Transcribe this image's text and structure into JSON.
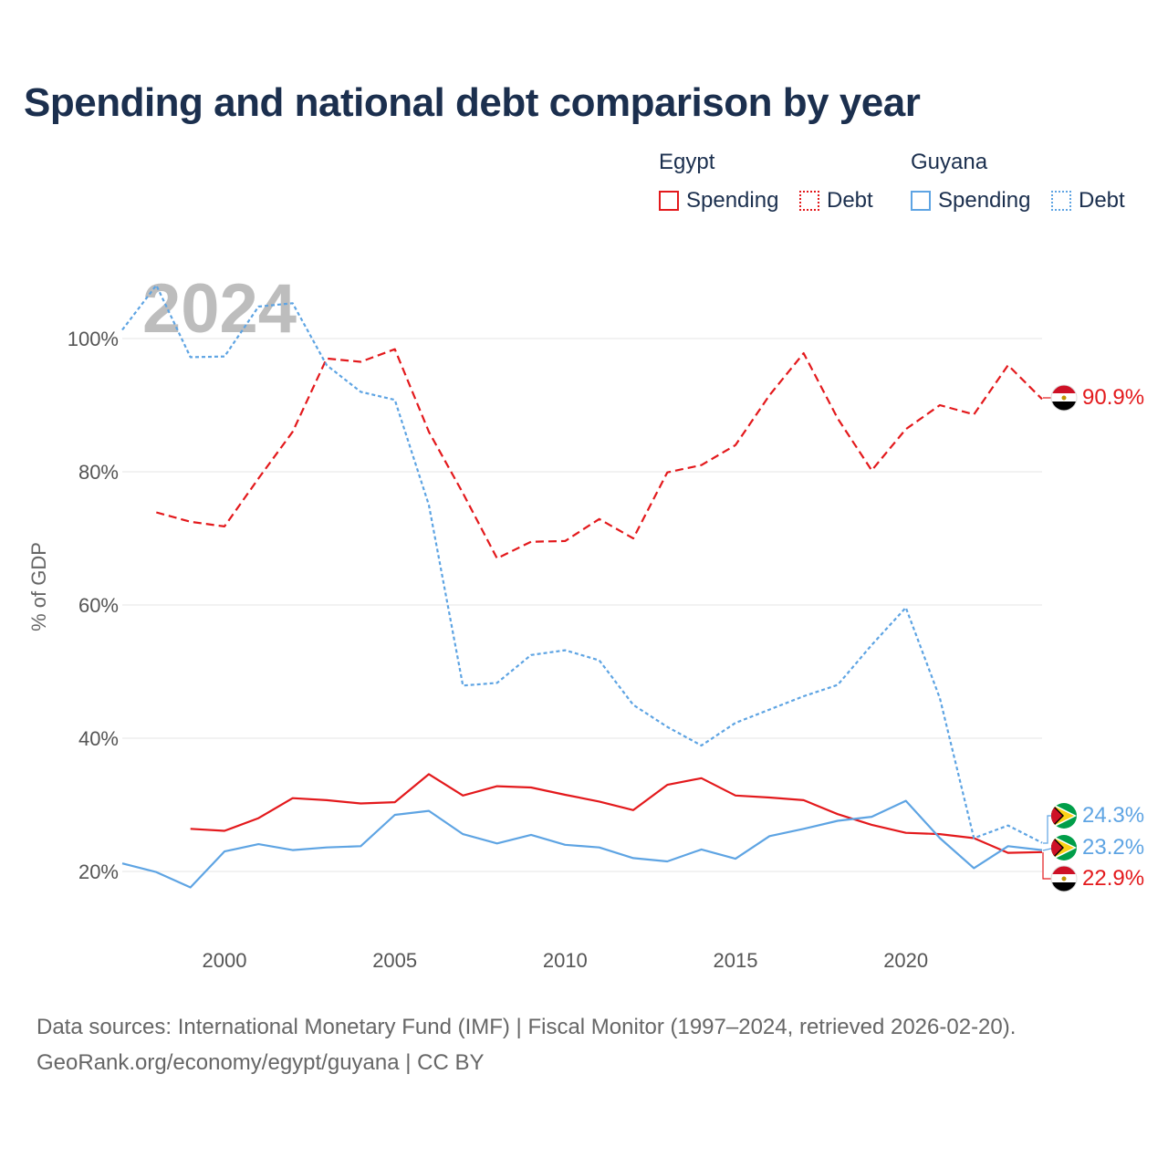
{
  "title": "Spending and national debt comparison by year",
  "legend": {
    "groups": [
      {
        "name": "Egypt",
        "color": "#e3191c",
        "items": [
          "Spending",
          "Debt"
        ]
      },
      {
        "name": "Guyana",
        "color": "#5ea4e3",
        "items": [
          "Spending",
          "Debt"
        ]
      }
    ]
  },
  "sources": {
    "line1": "Data sources: International Monetary Fund (IMF) | Fiscal Monitor (1997–2024, retrieved 2026-02-20).",
    "line2": "GeoRank.org/economy/egypt/guyana | CC BY"
  },
  "chart_data": {
    "type": "line",
    "title": "Spending and national debt comparison by year",
    "year_watermark": "2024",
    "ylabel": "% of GDP",
    "xlabel": "",
    "xlim": [
      1997,
      2024
    ],
    "ylim": [
      10,
      110
    ],
    "x_ticks": [
      2000,
      2005,
      2010,
      2015,
      2020
    ],
    "y_ticks": [
      20,
      40,
      60,
      80,
      100
    ],
    "y_tick_suffix": "%",
    "grid": true,
    "series": [
      {
        "name": "Egypt Spending",
        "country": "Egypt",
        "measure": "Spending",
        "color": "#e3191c",
        "dash": "solid",
        "end_label": "22.9%",
        "points": [
          [
            1999,
            26.4
          ],
          [
            2000,
            26.1
          ],
          [
            2001,
            28.0
          ],
          [
            2002,
            31.0
          ],
          [
            2003,
            30.7
          ],
          [
            2004,
            30.2
          ],
          [
            2005,
            30.4
          ],
          [
            2006,
            34.6
          ],
          [
            2007,
            31.4
          ],
          [
            2008,
            32.8
          ],
          [
            2009,
            32.6
          ],
          [
            2010,
            31.5
          ],
          [
            2011,
            30.5
          ],
          [
            2012,
            29.2
          ],
          [
            2013,
            33.0
          ],
          [
            2014,
            34.0
          ],
          [
            2015,
            31.4
          ],
          [
            2016,
            31.1
          ],
          [
            2017,
            30.7
          ],
          [
            2018,
            28.6
          ],
          [
            2019,
            27.0
          ],
          [
            2020,
            25.8
          ],
          [
            2021,
            25.6
          ],
          [
            2022,
            25.0
          ],
          [
            2023,
            22.8
          ],
          [
            2024,
            22.9
          ]
        ]
      },
      {
        "name": "Egypt Debt",
        "country": "Egypt",
        "measure": "Debt",
        "color": "#e3191c",
        "dash": "dashed",
        "end_label": "90.9%",
        "points": [
          [
            1998,
            73.9
          ],
          [
            1999,
            72.5
          ],
          [
            2000,
            71.8
          ],
          [
            2001,
            79.0
          ],
          [
            2002,
            86.0
          ],
          [
            2003,
            97.0
          ],
          [
            2004,
            96.5
          ],
          [
            2005,
            98.4
          ],
          [
            2006,
            86.0
          ],
          [
            2007,
            76.8
          ],
          [
            2008,
            67.0
          ],
          [
            2009,
            69.5
          ],
          [
            2010,
            69.6
          ],
          [
            2011,
            72.9
          ],
          [
            2012,
            70.0
          ],
          [
            2013,
            79.9
          ],
          [
            2014,
            81.0
          ],
          [
            2015,
            84.0
          ],
          [
            2016,
            91.5
          ],
          [
            2017,
            97.8
          ],
          [
            2018,
            88.0
          ],
          [
            2019,
            80.2
          ],
          [
            2020,
            86.4
          ],
          [
            2021,
            90.0
          ],
          [
            2022,
            88.6
          ],
          [
            2023,
            96.0
          ],
          [
            2024,
            90.9
          ]
        ]
      },
      {
        "name": "Guyana Spending",
        "country": "Guyana",
        "measure": "Spending",
        "color": "#5ea4e3",
        "dash": "solid",
        "end_label": "23.2%",
        "points": [
          [
            1997,
            21.2
          ],
          [
            1998,
            19.9
          ],
          [
            1999,
            17.6
          ],
          [
            2000,
            23.0
          ],
          [
            2001,
            24.1
          ],
          [
            2002,
            23.2
          ],
          [
            2003,
            23.6
          ],
          [
            2004,
            23.8
          ],
          [
            2005,
            28.5
          ],
          [
            2006,
            29.1
          ],
          [
            2007,
            25.6
          ],
          [
            2008,
            24.2
          ],
          [
            2009,
            25.5
          ],
          [
            2010,
            24.0
          ],
          [
            2011,
            23.6
          ],
          [
            2012,
            22.0
          ],
          [
            2013,
            21.5
          ],
          [
            2014,
            23.3
          ],
          [
            2015,
            21.9
          ],
          [
            2016,
            25.3
          ],
          [
            2017,
            26.4
          ],
          [
            2018,
            27.6
          ],
          [
            2019,
            28.2
          ],
          [
            2020,
            30.6
          ],
          [
            2021,
            25.0
          ],
          [
            2022,
            20.5
          ],
          [
            2023,
            23.8
          ],
          [
            2024,
            23.2
          ]
        ]
      },
      {
        "name": "Guyana Debt",
        "country": "Guyana",
        "measure": "Debt",
        "color": "#5ea4e3",
        "dash": "dotted",
        "end_label": "24.3%",
        "points": [
          [
            1997,
            101.3
          ],
          [
            1998,
            108.0
          ],
          [
            1999,
            97.2
          ],
          [
            2000,
            97.3
          ],
          [
            2001,
            104.8
          ],
          [
            2002,
            105.3
          ],
          [
            2003,
            96.0
          ],
          [
            2004,
            92.0
          ],
          [
            2005,
            90.8
          ],
          [
            2006,
            75.0
          ],
          [
            2007,
            47.9
          ],
          [
            2008,
            48.3
          ],
          [
            2009,
            52.5
          ],
          [
            2010,
            53.2
          ],
          [
            2011,
            51.7
          ],
          [
            2012,
            45.0
          ],
          [
            2013,
            41.7
          ],
          [
            2014,
            38.9
          ],
          [
            2015,
            42.3
          ],
          [
            2016,
            44.3
          ],
          [
            2017,
            46.3
          ],
          [
            2018,
            48.0
          ],
          [
            2019,
            54.0
          ],
          [
            2020,
            59.6
          ],
          [
            2021,
            46.0
          ],
          [
            2022,
            25.0
          ],
          [
            2023,
            26.9
          ],
          [
            2024,
            24.3
          ]
        ]
      }
    ]
  }
}
